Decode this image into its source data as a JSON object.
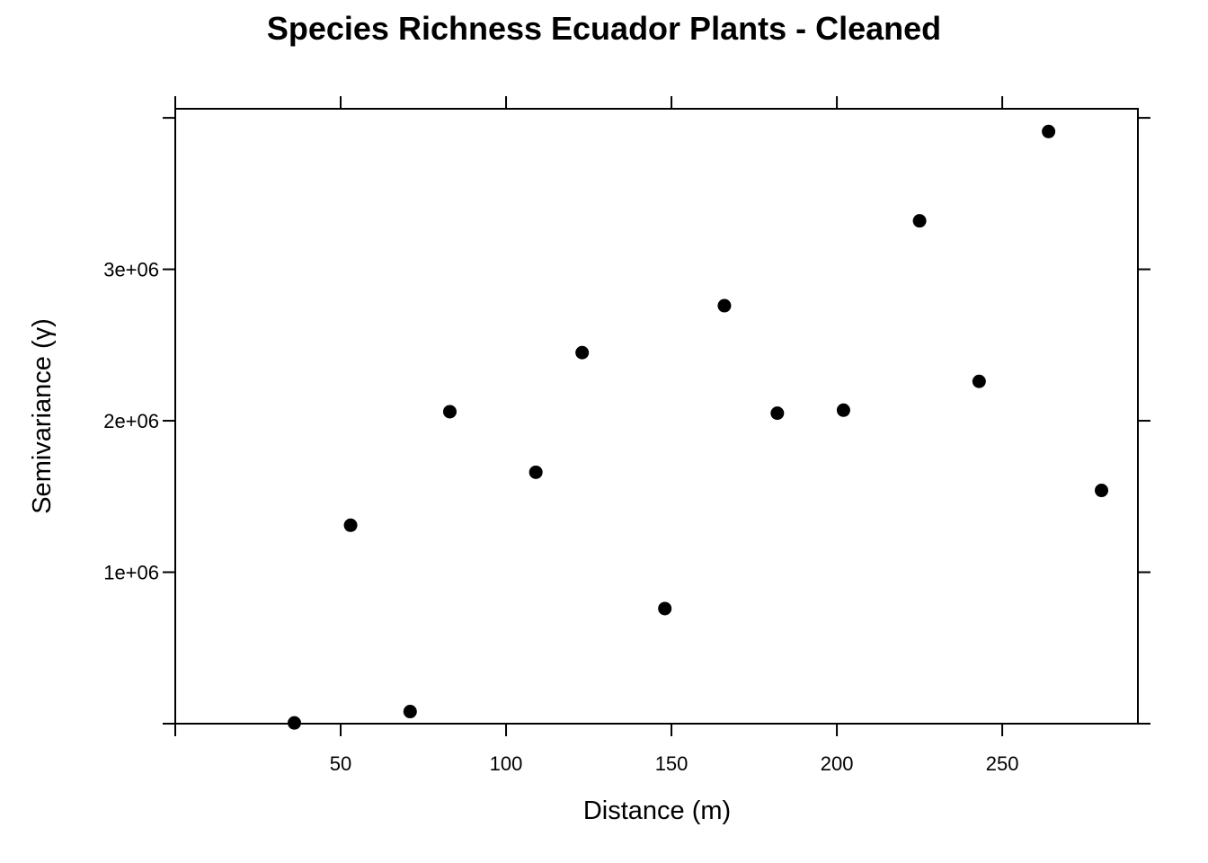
{
  "chart_data": {
    "type": "scatter",
    "title": "Species Richness Ecuador Plants - Cleaned",
    "xlabel": "Distance (m)",
    "ylabel": "Semivariance (γ)",
    "xlim": [
      0,
      291
    ],
    "ylim": [
      0,
      4060000
    ],
    "x_ticks": [
      {
        "value": 50,
        "label": "50"
      },
      {
        "value": 100,
        "label": "100"
      },
      {
        "value": 150,
        "label": "150"
      },
      {
        "value": 200,
        "label": "200"
      },
      {
        "value": 250,
        "label": "250"
      }
    ],
    "y_ticks": [
      {
        "value": 1000000,
        "label": "1e+06"
      },
      {
        "value": 2000000,
        "label": "2e+06"
      },
      {
        "value": 3000000,
        "label": "3e+06"
      }
    ],
    "grid": false,
    "legend": "none",
    "point_color": "#000000",
    "x": [
      36,
      53,
      71,
      83,
      109,
      123,
      148,
      166,
      182,
      202,
      225,
      243,
      264,
      280
    ],
    "y": [
      5000,
      1310000,
      80000,
      2060000,
      1660000,
      2450000,
      760000,
      2760000,
      2050000,
      2070000,
      3320000,
      2260000,
      3910000,
      1540000
    ]
  }
}
